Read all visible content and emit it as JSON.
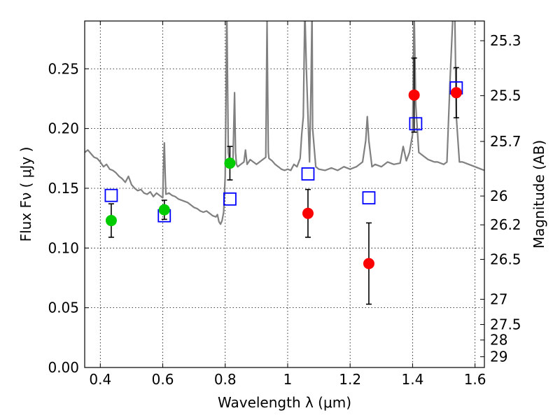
{
  "chart_data": {
    "type": "scatter",
    "title": "",
    "xlabel": "Wavelength  λ (μm)",
    "ylabel": "Flux  Fν  ( μJy )",
    "ylabel_right": "Magnitude (AB)",
    "xlim": [
      0.35,
      1.63
    ],
    "ylim": [
      0.0,
      0.29
    ],
    "grid": true,
    "x_ticks": [
      0.4,
      0.6,
      0.8,
      1.0,
      1.2,
      1.4,
      1.6
    ],
    "x_tick_labels": [
      "0.4",
      "0.6",
      "0.8",
      "1",
      "1.2",
      "1.4",
      "1.6"
    ],
    "y_ticks": [
      0.0,
      0.05,
      0.1,
      0.15,
      0.2,
      0.25
    ],
    "y_tick_labels": [
      "0.00",
      "0.05",
      "0.10",
      "0.15",
      "0.20",
      "0.25"
    ],
    "right_ticks": [
      {
        "label": "25.3",
        "flux": 0.2735
      },
      {
        "label": "25.5",
        "flux": 0.2275
      },
      {
        "label": "25.7",
        "flux": 0.1892
      },
      {
        "label": "26",
        "flux": 0.1435
      },
      {
        "label": "26.2",
        "flux": 0.1194
      },
      {
        "label": "26.5",
        "flux": 0.0905
      },
      {
        "label": "27",
        "flux": 0.0571
      },
      {
        "label": "27.5",
        "flux": 0.036
      },
      {
        "label": "28",
        "flux": 0.023
      },
      {
        "label": "29",
        "flux": 0.009
      }
    ],
    "colors": {
      "model": "#808080",
      "green": "#00cc00",
      "red": "#ff0000",
      "square": "#0000ff",
      "error": "#000000"
    },
    "series": [
      {
        "style": "line",
        "x": [
          0.35,
          0.36,
          0.37,
          0.38,
          0.39,
          0.4,
          0.41,
          0.42,
          0.43,
          0.44,
          0.45,
          0.46,
          0.47,
          0.48,
          0.49,
          0.5,
          0.51,
          0.52,
          0.53,
          0.54,
          0.55,
          0.56,
          0.57,
          0.58,
          0.59,
          0.6,
          0.602,
          0.605,
          0.608,
          0.61,
          0.62,
          0.63,
          0.64,
          0.65,
          0.66,
          0.67,
          0.68,
          0.69,
          0.7,
          0.71,
          0.72,
          0.73,
          0.74,
          0.75,
          0.76,
          0.77,
          0.775,
          0.78,
          0.785,
          0.79,
          0.795,
          0.8,
          0.803,
          0.805,
          0.807,
          0.81,
          0.815,
          0.82,
          0.825,
          0.83,
          0.833,
          0.836,
          0.84,
          0.85,
          0.86,
          0.865,
          0.87,
          0.88,
          0.89,
          0.9,
          0.91,
          0.92,
          0.93,
          0.934,
          0.938,
          0.94,
          0.95,
          0.96,
          0.97,
          0.98,
          0.99,
          1.0,
          1.01,
          1.02,
          1.03,
          1.04,
          1.045,
          1.05,
          1.055,
          1.06,
          1.07,
          1.075,
          1.078,
          1.08,
          1.09,
          1.1,
          1.12,
          1.14,
          1.16,
          1.18,
          1.2,
          1.22,
          1.24,
          1.25,
          1.255,
          1.26,
          1.27,
          1.28,
          1.3,
          1.32,
          1.34,
          1.36,
          1.37,
          1.38,
          1.39,
          1.4,
          1.405,
          1.41,
          1.42,
          1.43,
          1.44,
          1.45,
          1.46,
          1.47,
          1.48,
          1.49,
          1.5,
          1.51,
          1.52,
          1.53,
          1.535,
          1.54,
          1.55,
          1.56,
          1.58,
          1.6,
          1.62,
          1.63
        ],
        "y": [
          0.18,
          0.182,
          0.179,
          0.176,
          0.175,
          0.172,
          0.168,
          0.17,
          0.166,
          0.165,
          0.163,
          0.16,
          0.158,
          0.155,
          0.16,
          0.153,
          0.15,
          0.148,
          0.149,
          0.146,
          0.145,
          0.147,
          0.143,
          0.146,
          0.144,
          0.142,
          0.165,
          0.188,
          0.16,
          0.145,
          0.146,
          0.144,
          0.143,
          0.141,
          0.14,
          0.139,
          0.138,
          0.136,
          0.134,
          0.133,
          0.131,
          0.13,
          0.131,
          0.129,
          0.127,
          0.126,
          0.128,
          0.122,
          0.12,
          0.123,
          0.13,
          0.16,
          0.24,
          0.3,
          0.25,
          0.18,
          0.17,
          0.172,
          0.175,
          0.23,
          0.18,
          0.17,
          0.168,
          0.17,
          0.172,
          0.182,
          0.17,
          0.174,
          0.172,
          0.17,
          0.172,
          0.174,
          0.176,
          0.29,
          0.18,
          0.175,
          0.173,
          0.17,
          0.168,
          0.166,
          0.165,
          0.166,
          0.165,
          0.17,
          0.168,
          0.175,
          0.195,
          0.21,
          0.3,
          0.25,
          0.172,
          0.24,
          0.3,
          0.2,
          0.168,
          0.166,
          0.165,
          0.167,
          0.165,
          0.168,
          0.166,
          0.168,
          0.172,
          0.19,
          0.21,
          0.19,
          0.168,
          0.17,
          0.168,
          0.172,
          0.17,
          0.171,
          0.185,
          0.173,
          0.18,
          0.195,
          0.3,
          0.22,
          0.18,
          0.178,
          0.176,
          0.174,
          0.173,
          0.172,
          0.172,
          0.171,
          0.17,
          0.172,
          0.24,
          0.3,
          0.3,
          0.21,
          0.172,
          0.172,
          0.17,
          0.168,
          0.166,
          0.165
        ]
      },
      {
        "style": "open-square",
        "color": "square",
        "x": [
          0.435,
          0.605,
          0.815,
          1.065,
          1.26,
          1.41,
          1.54
        ],
        "y": [
          0.144,
          0.127,
          0.141,
          0.162,
          0.142,
          0.204,
          0.234
        ]
      },
      {
        "style": "filled-circle",
        "color": "green",
        "x": [
          0.435,
          0.605,
          0.815
        ],
        "y": [
          0.123,
          0.132,
          0.171
        ],
        "yerr": [
          0.014,
          0.008,
          0.014
        ]
      },
      {
        "style": "filled-circle",
        "color": "red",
        "x": [
          1.065,
          1.26,
          1.405,
          1.54
        ],
        "y": [
          0.129,
          0.087,
          0.228,
          0.23
        ],
        "yerr": [
          0.02,
          0.034,
          0.031,
          0.021
        ]
      }
    ]
  }
}
